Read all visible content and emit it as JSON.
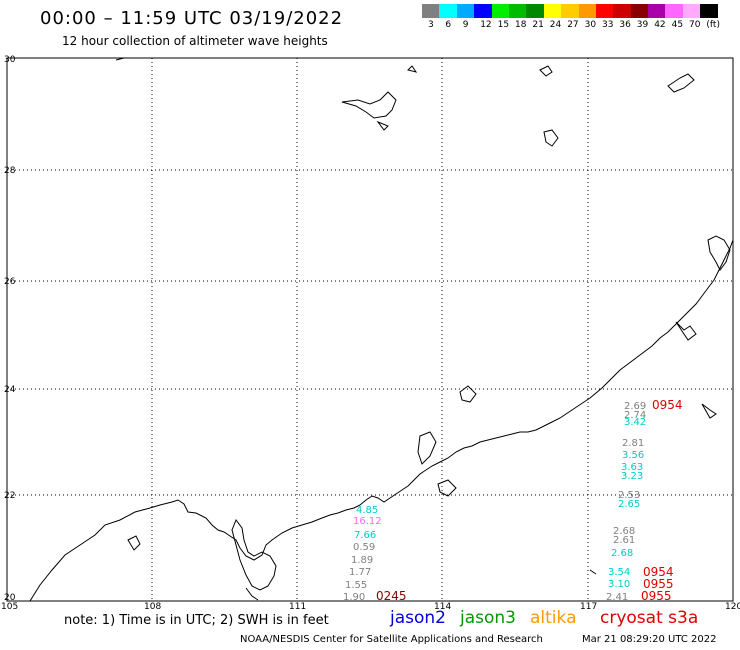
{
  "title": "00:00 – 11:59 UTC 03/19/2022",
  "subtitle": "12 hour collection of altimeter wave heights",
  "legend": {
    "colors": [
      "#808080",
      "#00ffff",
      "#00aaff",
      "#0000ff",
      "#00ee00",
      "#00bb00",
      "#008800",
      "#ffff00",
      "#ffcc00",
      "#ff9900",
      "#ff0000",
      "#cc0000",
      "#880000",
      "#aa00aa",
      "#ff66ff",
      "#ffaaff",
      "#000000"
    ],
    "labels": [
      "3",
      "6",
      "9",
      "12",
      "15",
      "18",
      "21",
      "24",
      "27",
      "30",
      "33",
      "36",
      "39",
      "42",
      "45",
      "70",
      "(ft)"
    ]
  },
  "axes": {
    "lat_labels": [
      "30",
      "28",
      "26",
      "24",
      "22",
      "20"
    ],
    "lon_labels": [
      "105",
      "108",
      "111",
      "114",
      "117",
      "120"
    ]
  },
  "wave_labels": [
    {
      "text": "2.69",
      "color": "#808080"
    },
    {
      "text": "2.74",
      "color": "#808080"
    },
    {
      "text": "3.42",
      "color": "#00cccc"
    },
    {
      "text": "2.81",
      "color": "#808080"
    },
    {
      "text": "3.56",
      "color": "#00cccc"
    },
    {
      "text": "3.63",
      "color": "#00cccc"
    },
    {
      "text": "3.23",
      "color": "#00cccc"
    },
    {
      "text": "2.53",
      "color": "#808080"
    },
    {
      "text": "2.65",
      "color": "#00cccc"
    },
    {
      "text": "2.68",
      "color": "#808080"
    },
    {
      "text": "2.61",
      "color": "#808080"
    },
    {
      "text": "2.68",
      "color": "#00cccc"
    },
    {
      "text": "3.54",
      "color": "#00cccc"
    },
    {
      "text": "3.10",
      "color": "#00cccc"
    },
    {
      "text": "2.41",
      "color": "#808080"
    },
    {
      "text": "4.85",
      "color": "#00cccc"
    },
    {
      "text": "16.12",
      "color": "#ff66ff"
    },
    {
      "text": "7.66",
      "color": "#00cccc"
    },
    {
      "text": "0.59",
      "color": "#808080"
    },
    {
      "text": "1.89",
      "color": "#808080"
    },
    {
      "text": "1.77",
      "color": "#808080"
    },
    {
      "text": "1.55",
      "color": "#808080"
    },
    {
      "text": "1.90",
      "color": "#808080"
    }
  ],
  "pass_times": [
    {
      "text": "0954",
      "color": "#dd0000"
    },
    {
      "text": "0954",
      "color": "#dd0000"
    },
    {
      "text": "0955",
      "color": "#dd0000"
    },
    {
      "text": "0955",
      "color": "#dd0000"
    },
    {
      "text": "0245",
      "color": "#880000"
    }
  ],
  "note": "note: 1) Time is in UTC; 2) SWH is in feet",
  "satellites": [
    {
      "name": "jason2",
      "color": "#0000dd"
    },
    {
      "name": "jason3",
      "color": "#009900"
    },
    {
      "name": "altika",
      "color": "#ff9900"
    },
    {
      "name": "cryosat s3a",
      "color": "#dd0000"
    }
  ],
  "footer_left": "NOAA/NESDIS Center for Satellite Applications and Research",
  "footer_right": "Mar 21 08:29:20 UTC 2022"
}
